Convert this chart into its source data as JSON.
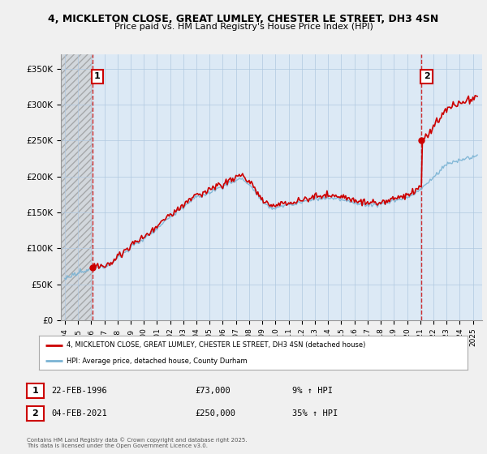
{
  "title_line1": "4, MICKLETON CLOSE, GREAT LUMLEY, CHESTER LE STREET, DH3 4SN",
  "title_line2": "Price paid vs. HM Land Registry's House Price Index (HPI)",
  "ylim": [
    0,
    370000
  ],
  "yticks": [
    0,
    50000,
    100000,
    150000,
    200000,
    250000,
    300000,
    350000
  ],
  "ytick_labels": [
    "£0",
    "£50K",
    "£100K",
    "£150K",
    "£200K",
    "£250K",
    "£300K",
    "£350K"
  ],
  "xlim_start": 1993.7,
  "xlim_end": 2025.7,
  "purchase1_date": 1996.13,
  "purchase1_price": 73000,
  "purchase2_date": 2021.09,
  "purchase2_price": 250000,
  "hpi_color": "#7ab3d4",
  "price_color": "#cc0000",
  "plot_bg_color": "#dce9f5",
  "hatch_color": "#b0b0b0",
  "background_color": "#f0f0f0",
  "legend_label1": "4, MICKLETON CLOSE, GREAT LUMLEY, CHESTER LE STREET, DH3 4SN (detached house)",
  "legend_label2": "HPI: Average price, detached house, County Durham",
  "note1_num": "1",
  "note1_date": "22-FEB-1996",
  "note1_price": "£73,000",
  "note1_hpi": "9% ↑ HPI",
  "note2_num": "2",
  "note2_date": "04-FEB-2021",
  "note2_price": "£250,000",
  "note2_hpi": "35% ↑ HPI",
  "copyright": "Contains HM Land Registry data © Crown copyright and database right 2025.\nThis data is licensed under the Open Government Licence v3.0."
}
